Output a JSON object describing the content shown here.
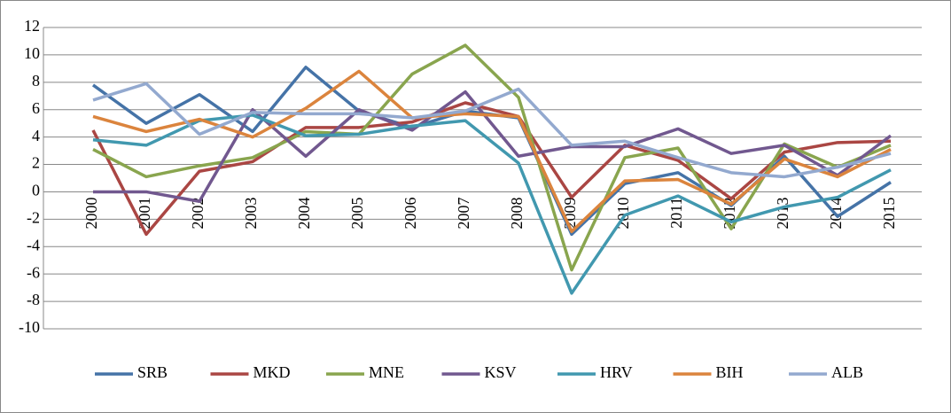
{
  "chart_data": {
    "type": "line",
    "categories": [
      "2000",
      "2001",
      "2002",
      "2003",
      "2004",
      "2005",
      "2006",
      "2007",
      "2008",
      "2009",
      "2010",
      "2011",
      "2012",
      "2013",
      "2014",
      "2015"
    ],
    "series": [
      {
        "name": "SRB",
        "color": "#4573a7",
        "values": [
          7.8,
          5.0,
          7.1,
          4.4,
          9.1,
          5.9,
          4.7,
          5.9,
          5.4,
          -3.1,
          0.6,
          1.4,
          -1.0,
          2.6,
          -1.8,
          0.7
        ]
      },
      {
        "name": "MKD",
        "color": "#aa4643",
        "values": [
          4.5,
          -3.1,
          1.5,
          2.2,
          4.7,
          4.7,
          5.1,
          6.5,
          5.5,
          -0.4,
          3.4,
          2.3,
          -0.5,
          2.9,
          3.6,
          3.7
        ]
      },
      {
        "name": "MNE",
        "color": "#89a54e",
        "values": [
          3.1,
          1.1,
          1.9,
          2.5,
          4.4,
          4.2,
          8.6,
          10.7,
          6.9,
          -5.7,
          2.5,
          3.2,
          -2.7,
          3.5,
          1.8,
          3.4
        ]
      },
      {
        "name": "KSV",
        "color": "#71588f",
        "values": [
          0.0,
          0.0,
          -0.7,
          6.0,
          2.6,
          6.0,
          4.5,
          7.3,
          2.6,
          3.3,
          3.3,
          4.6,
          2.8,
          3.4,
          1.2,
          4.1
        ]
      },
      {
        "name": "HRV",
        "color": "#4198af",
        "values": [
          3.8,
          3.4,
          5.2,
          5.6,
          4.1,
          4.2,
          4.8,
          5.2,
          2.1,
          -7.4,
          -1.7,
          -0.3,
          -2.2,
          -1.1,
          -0.4,
          1.6
        ]
      },
      {
        "name": "BIH",
        "color": "#db843d",
        "values": [
          5.5,
          4.4,
          5.3,
          4.0,
          6.1,
          8.8,
          5.4,
          5.7,
          5.5,
          -2.9,
          0.8,
          0.9,
          -0.9,
          2.4,
          1.1,
          3.1
        ]
      },
      {
        "name": "ALB",
        "color": "#93a9cf",
        "values": [
          6.7,
          7.9,
          4.2,
          5.8,
          5.7,
          5.7,
          5.4,
          5.9,
          7.5,
          3.4,
          3.7,
          2.5,
          1.4,
          1.1,
          1.8,
          2.8
        ]
      }
    ],
    "ylim": [
      -10,
      12
    ],
    "yticks": [
      -10,
      -8,
      -6,
      -4,
      -2,
      0,
      2,
      4,
      6,
      8,
      10,
      12
    ],
    "grid": true,
    "legend": "bottom"
  }
}
